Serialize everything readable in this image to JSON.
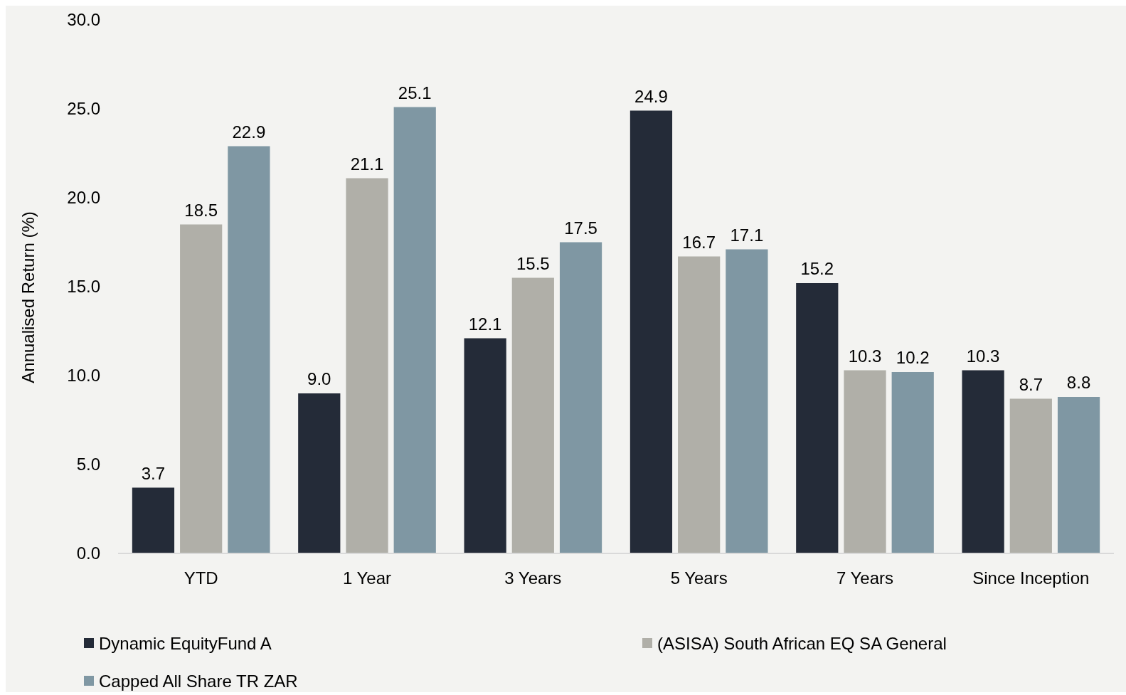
{
  "chart_data": {
    "type": "bar",
    "ylabel": "Annualised Return (%)",
    "categories": [
      "YTD",
      "1 Year",
      "3 Years",
      "5 Years",
      "7 Years",
      "Since Inception"
    ],
    "series": [
      {
        "name": "Dynamic EquityFund A",
        "color": "#242b38",
        "values": [
          3.7,
          9.0,
          12.1,
          24.9,
          15.2,
          10.3
        ],
        "value_labels": [
          "3.7",
          "9.0",
          "12.1",
          "24.9",
          "15.2",
          "10.3"
        ]
      },
      {
        "name": "(ASISA) South African EQ SA General",
        "color": "#b0afa8",
        "values": [
          18.5,
          21.1,
          15.5,
          16.7,
          10.3,
          8.7
        ],
        "value_labels": [
          "18.5",
          "21.1",
          "15.5",
          "16.7",
          "10.3",
          "8.7"
        ]
      },
      {
        "name": "Capped All Share TR ZAR",
        "color": "#7f97a3",
        "values": [
          22.9,
          25.1,
          17.5,
          17.1,
          10.2,
          8.8
        ],
        "value_labels": [
          "22.9",
          "25.1",
          "17.5",
          "17.1",
          "10.2",
          "8.8"
        ]
      }
    ],
    "ylim": [
      0,
      30
    ],
    "yticks": [
      {
        "value": 0,
        "label": "0.0"
      },
      {
        "value": 5,
        "label": "5.0"
      },
      {
        "value": 10,
        "label": "10.0"
      },
      {
        "value": 15,
        "label": "15.0"
      },
      {
        "value": 20,
        "label": "20.0"
      },
      {
        "value": 25,
        "label": "25.0"
      },
      {
        "value": 30,
        "label": "30.0"
      }
    ],
    "legend": "bottom",
    "grid": false
  }
}
